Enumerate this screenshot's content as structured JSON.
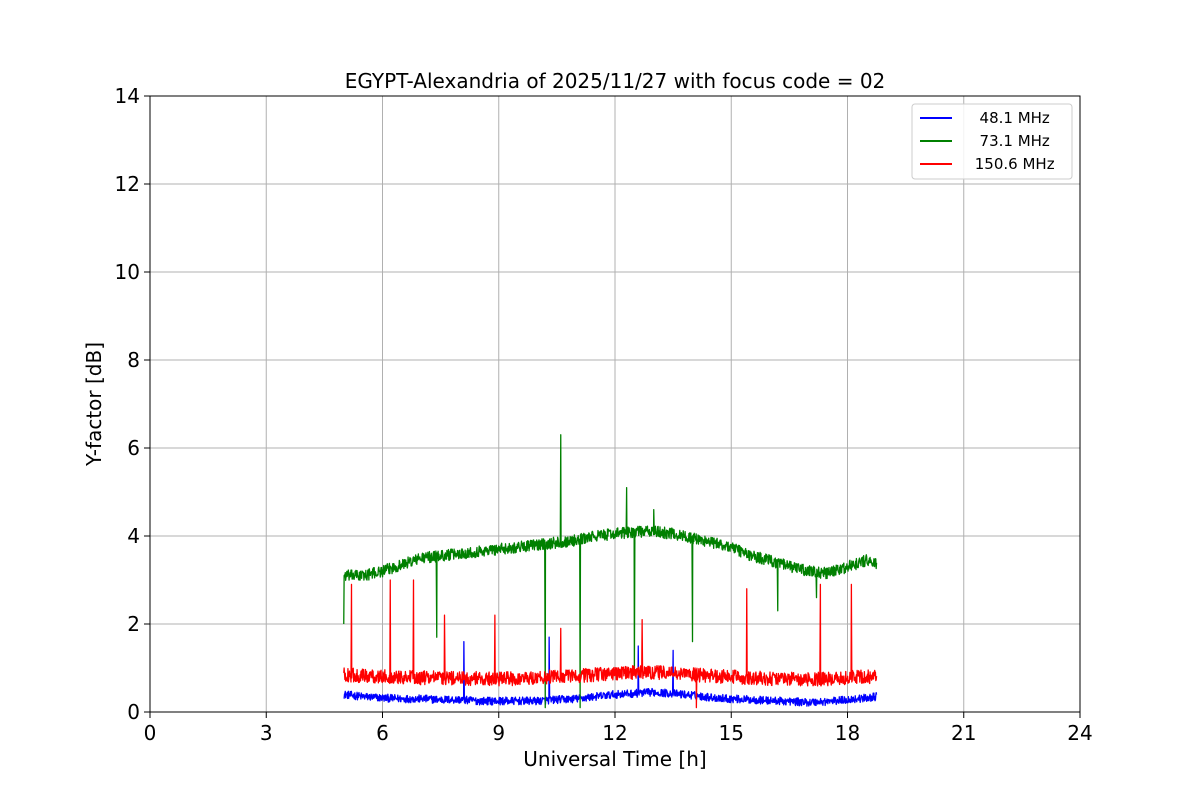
{
  "chart_data": {
    "type": "line",
    "title": "EGYPT-Alexandria of 2025/11/27 with focus code = 02",
    "xlabel": "Universal Time [h]",
    "ylabel": "Y-factor [dB]",
    "xlim": [
      0,
      24
    ],
    "ylim": [
      0,
      14
    ],
    "xticks": [
      0,
      3,
      6,
      9,
      12,
      15,
      18,
      21,
      24
    ],
    "yticks": [
      0,
      2,
      4,
      6,
      8,
      10,
      12,
      14
    ],
    "grid": true,
    "legend_position": "top-right",
    "series": [
      {
        "name": "  48.1 MHz",
        "color": "#0000ff",
        "x": [
          5.0,
          5.5,
          6.0,
          6.5,
          7.0,
          7.5,
          8.0,
          8.5,
          9.0,
          9.5,
          10.0,
          10.5,
          11.0,
          11.5,
          12.0,
          12.5,
          13.0,
          13.5,
          14.0,
          14.5,
          15.0,
          15.5,
          16.0,
          16.5,
          17.0,
          17.5,
          18.0,
          18.5,
          18.75
        ],
        "y": [
          0.4,
          0.35,
          0.32,
          0.3,
          0.3,
          0.28,
          0.28,
          0.25,
          0.25,
          0.25,
          0.25,
          0.28,
          0.3,
          0.35,
          0.4,
          0.42,
          0.45,
          0.42,
          0.38,
          0.33,
          0.3,
          0.28,
          0.26,
          0.24,
          0.22,
          0.24,
          0.28,
          0.32,
          0.35
        ],
        "spikes": [
          [
            8.1,
            1.6
          ],
          [
            10.3,
            1.7
          ],
          [
            12.6,
            1.5
          ],
          [
            13.5,
            1.4
          ]
        ]
      },
      {
        "name": "  73.1 MHz",
        "color": "#008000",
        "x": [
          5.0,
          5.5,
          6.0,
          6.5,
          7.0,
          7.5,
          8.0,
          8.5,
          9.0,
          9.5,
          10.0,
          10.5,
          11.0,
          11.5,
          12.0,
          12.5,
          13.0,
          13.5,
          14.0,
          14.5,
          15.0,
          15.5,
          16.0,
          16.5,
          17.0,
          17.5,
          18.0,
          18.5,
          18.75
        ],
        "y": [
          3.1,
          3.1,
          3.2,
          3.35,
          3.5,
          3.55,
          3.6,
          3.65,
          3.7,
          3.75,
          3.8,
          3.85,
          3.9,
          4.0,
          4.05,
          4.1,
          4.1,
          4.05,
          3.95,
          3.85,
          3.75,
          3.55,
          3.45,
          3.3,
          3.2,
          3.15,
          3.3,
          3.45,
          3.35
        ],
        "spikes": [
          [
            10.6,
            6.3
          ],
          [
            12.3,
            5.1
          ],
          [
            13.0,
            4.6
          ],
          [
            5.0,
            2.0
          ],
          [
            7.4,
            1.7
          ],
          [
            10.2,
            0.1
          ],
          [
            11.1,
            0.1
          ],
          [
            12.5,
            0.9
          ],
          [
            14.0,
            1.6
          ],
          [
            16.2,
            2.3
          ],
          [
            17.2,
            2.6
          ]
        ]
      },
      {
        "name": " 150.6 MHz",
        "color": "#ff0000",
        "x": [
          5.0,
          5.5,
          6.0,
          6.5,
          7.0,
          7.5,
          8.0,
          8.5,
          9.0,
          9.5,
          10.0,
          10.5,
          11.0,
          11.5,
          12.0,
          12.5,
          13.0,
          13.5,
          14.0,
          14.5,
          15.0,
          15.5,
          16.0,
          16.5,
          17.0,
          17.5,
          18.0,
          18.5,
          18.75
        ],
        "y": [
          0.85,
          0.82,
          0.8,
          0.8,
          0.78,
          0.78,
          0.76,
          0.76,
          0.75,
          0.76,
          0.78,
          0.8,
          0.82,
          0.85,
          0.88,
          0.9,
          0.9,
          0.88,
          0.85,
          0.82,
          0.8,
          0.78,
          0.76,
          0.75,
          0.74,
          0.75,
          0.78,
          0.8,
          0.8
        ],
        "spikes": [
          [
            5.2,
            2.9
          ],
          [
            6.2,
            3.0
          ],
          [
            6.8,
            3.0
          ],
          [
            7.6,
            2.2
          ],
          [
            8.9,
            2.2
          ],
          [
            10.6,
            1.9
          ],
          [
            12.7,
            2.1
          ],
          [
            14.1,
            0.1
          ],
          [
            15.4,
            2.8
          ],
          [
            17.3,
            2.9
          ],
          [
            18.1,
            2.9
          ]
        ]
      }
    ]
  }
}
